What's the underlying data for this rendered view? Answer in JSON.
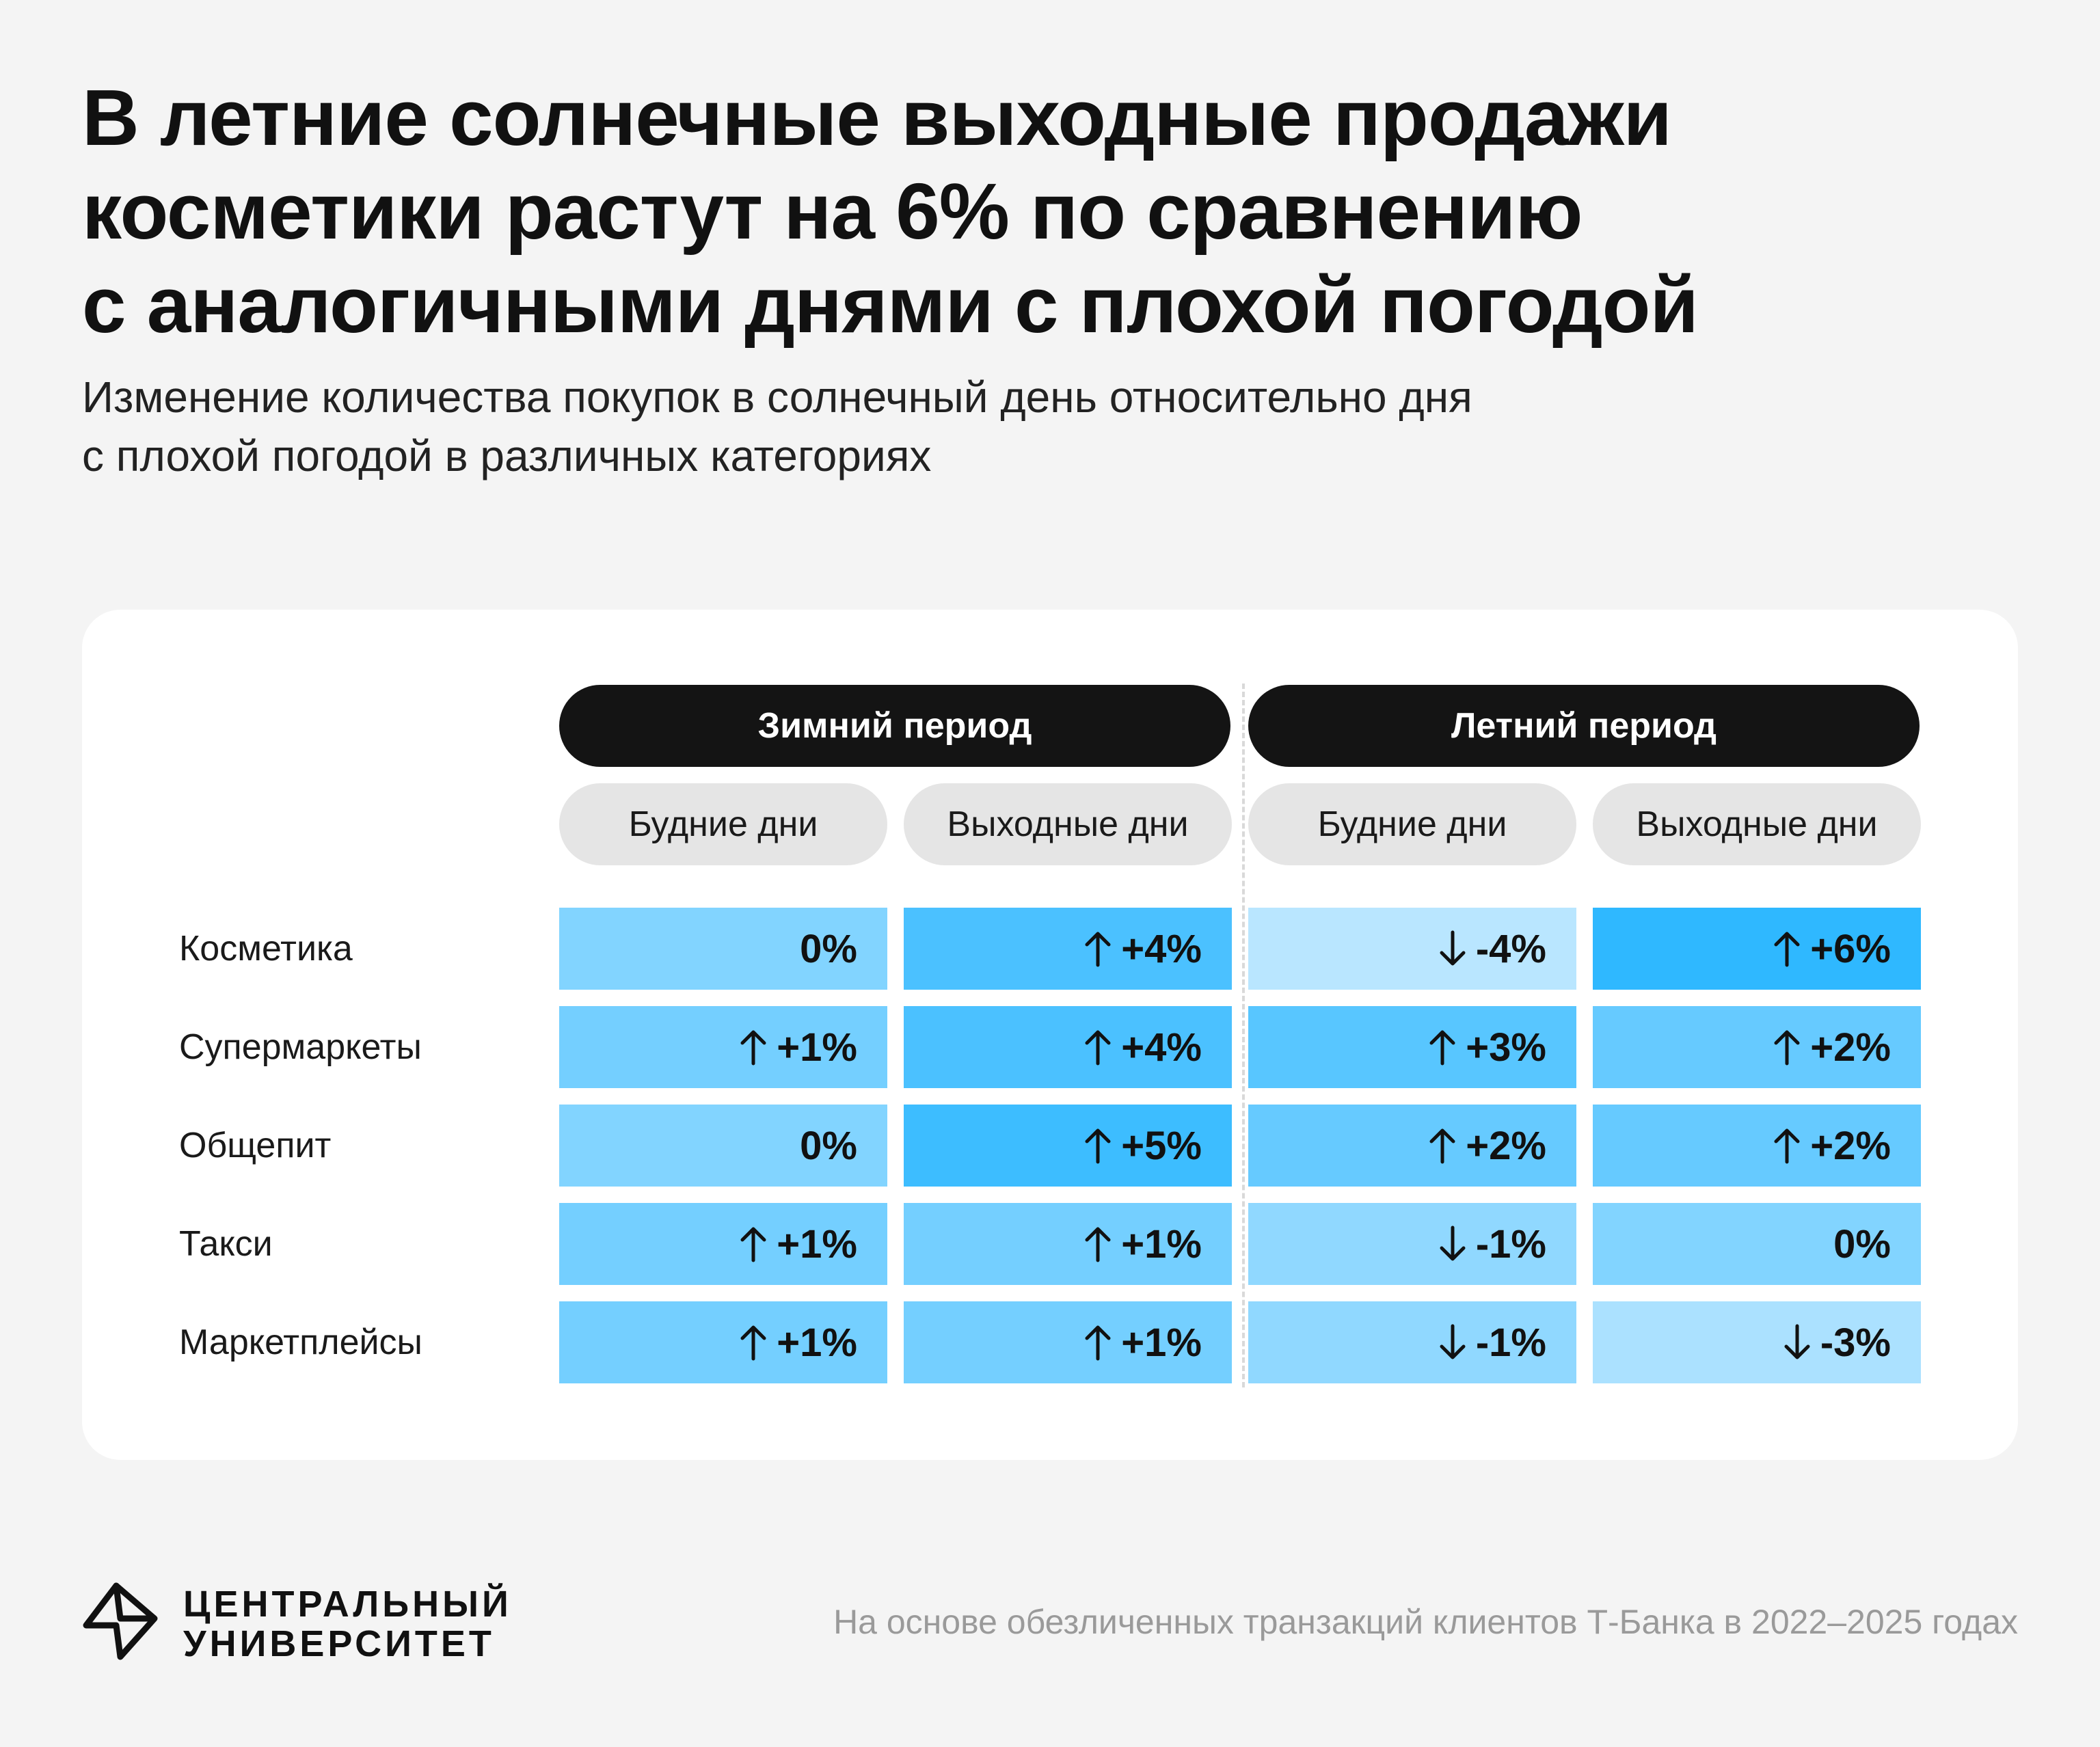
{
  "title": "В летние солнечные выходные продажи\nкосметики растут на 6% по сравнению\nс аналогичными днями с плохой погодой",
  "subtitle": "Изменение количества покупок в солнечный день относительно дня\nс плохой погодой в различных категориях",
  "chart_data": {
    "type": "table",
    "unit": "%",
    "periods": [
      {
        "label": "Зимний период",
        "columns": [
          "Будние дни",
          "Выходные дни"
        ]
      },
      {
        "label": "Летний период",
        "columns": [
          "Будние дни",
          "Выходные дни"
        ]
      }
    ],
    "categories": [
      "Косметика",
      "Супермаркеты",
      "Общепит",
      "Такси",
      "Маркетплейсы"
    ],
    "values": [
      [
        0,
        4,
        -4,
        6
      ],
      [
        1,
        4,
        3,
        2
      ],
      [
        0,
        5,
        2,
        2
      ],
      [
        1,
        1,
        -1,
        0
      ],
      [
        1,
        1,
        -1,
        -3
      ]
    ],
    "labels": [
      [
        "0%",
        "+4%",
        "-4%",
        "+6%"
      ],
      [
        "+1%",
        "+4%",
        "+3%",
        "+2%"
      ],
      [
        "0%",
        "+5%",
        "+2%",
        "+2%"
      ],
      [
        "+1%",
        "+1%",
        "-1%",
        "0%"
      ],
      [
        "+1%",
        "+1%",
        "-1%",
        "-3%"
      ]
    ],
    "color_scale": [
      "#b9e6ff",
      "#2fb8ff"
    ]
  },
  "footer": {
    "brand": "ЦЕНТРАЛЬНЫЙ\nУНИВЕРСИТЕТ",
    "logo_icon": "central-university-logo-icon",
    "source": "На основе обезличенных транзакций клиентов Т-Банка в 2022–2025 годах"
  }
}
